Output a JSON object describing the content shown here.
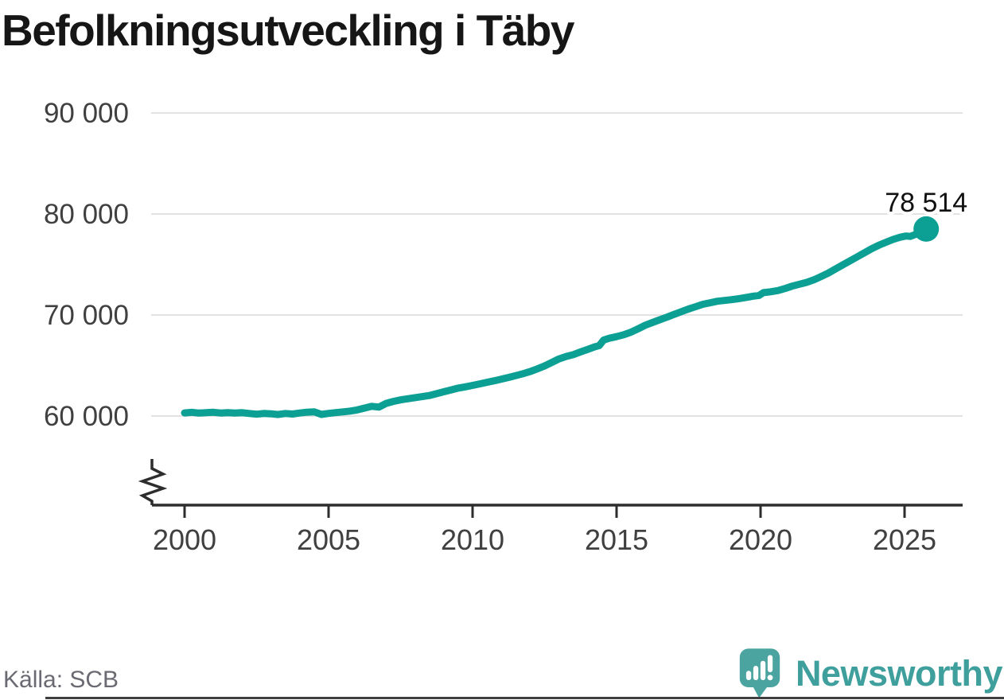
{
  "title": "Befolkningsutveckling i Täby",
  "source": "Källa: SCB",
  "branding": {
    "name": "Newsworthy"
  },
  "colors": {
    "background": "#ffffff",
    "line": "#0ba093",
    "grid": "#e2e2e2",
    "axis": "#2d2d2d",
    "tick_label": "#404040",
    "title": "#161616",
    "value_label": "#111111",
    "source_text": "#6a6a72",
    "logo_icon": "#4ba4a0",
    "logo_text": "#3f9f9d",
    "bottom_bar": "#3f3f3f"
  },
  "chart_data": {
    "type": "line",
    "title": "Befolkningsutveckling i Täby",
    "xlabel": "",
    "ylabel": "",
    "grid": "horizontal",
    "legend": "none",
    "axis_break": true,
    "x_ticks": [
      2000,
      2005,
      2010,
      2015,
      2020,
      2025
    ],
    "x_tick_labels": [
      "2000",
      "2005",
      "2010",
      "2015",
      "2020",
      "2025"
    ],
    "y_ticks": [
      60000,
      70000,
      80000,
      90000
    ],
    "y_tick_labels": [
      "60 000",
      "70 000",
      "80 000",
      "90 000"
    ],
    "y_visible_range": [
      60000,
      90000
    ],
    "x_range": [
      2000,
      2025.75
    ],
    "annotation": {
      "text": "78 514",
      "x": 2025.75,
      "y": 78514
    },
    "series": [
      {
        "name": "Befolkning i Täby",
        "points": [
          [
            2000,
            60310
          ],
          [
            2000.25,
            60370
          ],
          [
            2000.5,
            60290
          ],
          [
            2000.75,
            60330
          ],
          [
            2001,
            60370
          ],
          [
            2001.25,
            60300
          ],
          [
            2001.5,
            60340
          ],
          [
            2001.75,
            60300
          ],
          [
            2002,
            60330
          ],
          [
            2002.25,
            60250
          ],
          [
            2002.5,
            60180
          ],
          [
            2002.75,
            60250
          ],
          [
            2003,
            60220
          ],
          [
            2003.25,
            60150
          ],
          [
            2003.5,
            60250
          ],
          [
            2003.75,
            60200
          ],
          [
            2004,
            60300
          ],
          [
            2004.25,
            60380
          ],
          [
            2004.5,
            60420
          ],
          [
            2004.75,
            60160
          ],
          [
            2005,
            60260
          ],
          [
            2005.25,
            60340
          ],
          [
            2005.5,
            60410
          ],
          [
            2005.75,
            60490
          ],
          [
            2006,
            60610
          ],
          [
            2006.25,
            60790
          ],
          [
            2006.5,
            60960
          ],
          [
            2006.75,
            60880
          ],
          [
            2007,
            61250
          ],
          [
            2007.25,
            61450
          ],
          [
            2007.5,
            61600
          ],
          [
            2007.75,
            61710
          ],
          [
            2008,
            61820
          ],
          [
            2008.25,
            61920
          ],
          [
            2008.5,
            62030
          ],
          [
            2008.75,
            62210
          ],
          [
            2009,
            62400
          ],
          [
            2009.25,
            62580
          ],
          [
            2009.5,
            62760
          ],
          [
            2009.75,
            62890
          ],
          [
            2010,
            63030
          ],
          [
            2010.25,
            63180
          ],
          [
            2010.5,
            63340
          ],
          [
            2010.75,
            63490
          ],
          [
            2011,
            63650
          ],
          [
            2011.25,
            63820
          ],
          [
            2011.5,
            64000
          ],
          [
            2011.75,
            64190
          ],
          [
            2012,
            64400
          ],
          [
            2012.25,
            64670
          ],
          [
            2012.5,
            64950
          ],
          [
            2012.75,
            65300
          ],
          [
            2013,
            65650
          ],
          [
            2013.25,
            65900
          ],
          [
            2013.5,
            66080
          ],
          [
            2013.75,
            66350
          ],
          [
            2014,
            66600
          ],
          [
            2014.25,
            66860
          ],
          [
            2014.4,
            66980
          ],
          [
            2014.55,
            67520
          ],
          [
            2014.75,
            67700
          ],
          [
            2015,
            67860
          ],
          [
            2015.25,
            68050
          ],
          [
            2015.5,
            68300
          ],
          [
            2015.75,
            68640
          ],
          [
            2016,
            68990
          ],
          [
            2016.25,
            69260
          ],
          [
            2016.5,
            69530
          ],
          [
            2016.75,
            69790
          ],
          [
            2017,
            70060
          ],
          [
            2017.25,
            70330
          ],
          [
            2017.5,
            70600
          ],
          [
            2017.75,
            70830
          ],
          [
            2018,
            71060
          ],
          [
            2018.25,
            71210
          ],
          [
            2018.5,
            71360
          ],
          [
            2018.75,
            71440
          ],
          [
            2019,
            71520
          ],
          [
            2019.25,
            71620
          ],
          [
            2019.5,
            71740
          ],
          [
            2019.75,
            71870
          ],
          [
            2019.95,
            71940
          ],
          [
            2020.1,
            72210
          ],
          [
            2020.35,
            72300
          ],
          [
            2020.6,
            72420
          ],
          [
            2020.85,
            72620
          ],
          [
            2021.1,
            72860
          ],
          [
            2021.35,
            73050
          ],
          [
            2021.6,
            73230
          ],
          [
            2021.85,
            73480
          ],
          [
            2022.1,
            73800
          ],
          [
            2022.35,
            74150
          ],
          [
            2022.6,
            74550
          ],
          [
            2022.85,
            74950
          ],
          [
            2023.1,
            75350
          ],
          [
            2023.35,
            75750
          ],
          [
            2023.6,
            76150
          ],
          [
            2023.85,
            76550
          ],
          [
            2024.1,
            76900
          ],
          [
            2024.35,
            77200
          ],
          [
            2024.6,
            77480
          ],
          [
            2024.85,
            77700
          ],
          [
            2025.05,
            77820
          ],
          [
            2025.2,
            77780
          ],
          [
            2025.4,
            78000
          ],
          [
            2025.55,
            78230
          ],
          [
            2025.65,
            78380
          ],
          [
            2025.75,
            78514
          ]
        ]
      }
    ]
  }
}
